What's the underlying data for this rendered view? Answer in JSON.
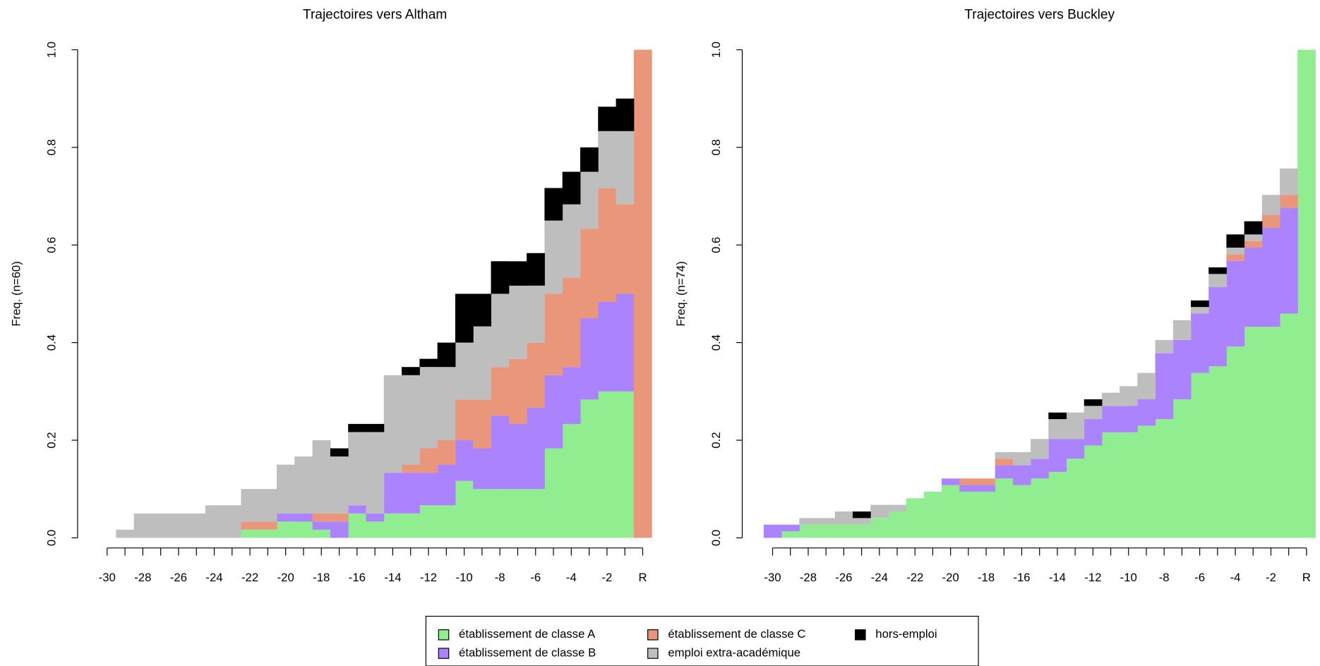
{
  "chart_data": [
    {
      "type": "bar",
      "stacked": true,
      "title": "Trajectoires vers Altham",
      "ylabel": "Freq. (n=60)",
      "categories": [
        "-30",
        null,
        "-28",
        null,
        "-26",
        null,
        "-24",
        null,
        "-22",
        null,
        "-20",
        null,
        "-18",
        null,
        "-16",
        null,
        "-14",
        null,
        "-12",
        null,
        "-10",
        null,
        "-8",
        null,
        "-6",
        null,
        "-4",
        null,
        "-2",
        null,
        "R"
      ],
      "series": [
        {
          "values": [
            0,
            0,
            0,
            0,
            0,
            0,
            0,
            0,
            0.0167,
            0.0167,
            0.0333,
            0.0333,
            0.0167,
            0,
            0.05,
            0.0333,
            0.05,
            0.05,
            0.0667,
            0.0667,
            0.1167,
            0.1,
            0.1,
            0.1,
            0.1,
            0.1833,
            0.2333,
            0.2833,
            0.3,
            0.3,
            0
          ]
        },
        {
          "values": [
            0,
            0,
            0,
            0,
            0,
            0,
            0,
            0,
            0,
            0,
            0.0167,
            0.0167,
            0.0167,
            0.0333,
            0.0167,
            0.0167,
            0.0833,
            0.0833,
            0.0667,
            0.0833,
            0.0833,
            0.0833,
            0.15,
            0.1333,
            0.1667,
            0.15,
            0.1167,
            0.1667,
            0.1833,
            0.2,
            0
          ]
        },
        {
          "values": [
            0,
            0,
            0,
            0,
            0,
            0,
            0,
            0,
            0.0167,
            0.0167,
            0,
            0,
            0.0167,
            0.0167,
            0,
            0,
            0,
            0.0167,
            0.05,
            0.05,
            0.0833,
            0.1,
            0.1,
            0.1333,
            0.1333,
            0.1667,
            0.1833,
            0.1833,
            0.2333,
            0.1833,
            1
          ]
        },
        {
          "values": [
            0,
            0.0167,
            0.05,
            0.05,
            0.05,
            0.05,
            0.0667,
            0.0667,
            0.0667,
            0.0667,
            0.1,
            0.1167,
            0.15,
            0.1167,
            0.15,
            0.1667,
            0.2,
            0.1833,
            0.1667,
            0.15,
            0.1167,
            0.15,
            0.15,
            0.15,
            0.1167,
            0.15,
            0.15,
            0.1167,
            0.1167,
            0.15,
            0
          ]
        },
        {
          "values": [
            0,
            0,
            0,
            0,
            0,
            0,
            0,
            0,
            0,
            0,
            0,
            0,
            0,
            0.0167,
            0.0167,
            0.0167,
            0,
            0.0167,
            0.0167,
            0.05,
            0.1,
            0.0667,
            0.0667,
            0.05,
            0.0667,
            0.0667,
            0.0667,
            0.05,
            0.05,
            0.0667,
            0
          ]
        }
      ],
      "ylim": [
        0,
        1
      ],
      "yticks": [
        {
          "value": 0,
          "label": "0.0"
        },
        {
          "value": 0.2,
          "label": "0.2"
        },
        {
          "value": 0.4,
          "label": "0.4"
        },
        {
          "value": 0.6,
          "label": "0.6"
        },
        {
          "value": 0.8,
          "label": "0.8"
        },
        {
          "value": 1,
          "label": "1.0"
        }
      ]
    },
    {
      "type": "bar",
      "stacked": true,
      "title": "Trajectoires vers Buckley",
      "ylabel": "Freq. (n=74)",
      "categories": [
        "-30",
        null,
        "-28",
        null,
        "-26",
        null,
        "-24",
        null,
        "-22",
        null,
        "-20",
        null,
        "-18",
        null,
        "-16",
        null,
        "-14",
        null,
        "-12",
        null,
        "-10",
        null,
        "-8",
        null,
        "-6",
        null,
        "-4",
        null,
        "-2",
        null,
        "R"
      ],
      "series": [
        {
          "values": [
            0,
            0.0135,
            0.027,
            0.027,
            0.027,
            0.027,
            0.0405,
            0.0541,
            0.0811,
            0.0946,
            0.1081,
            0.0946,
            0.0946,
            0.1216,
            0.1081,
            0.1216,
            0.1351,
            0.1622,
            0.1892,
            0.2162,
            0.2162,
            0.2297,
            0.2432,
            0.2838,
            0.3378,
            0.3514,
            0.3919,
            0.4324,
            0.4324,
            0.4595,
            1
          ]
        },
        {
          "values": [
            0.027,
            0.0135,
            0,
            0,
            0,
            0,
            0,
            0,
            0,
            0,
            0.0135,
            0.0135,
            0.0135,
            0.027,
            0.0405,
            0.0405,
            0.0676,
            0.0405,
            0.0541,
            0.0541,
            0.0541,
            0.0541,
            0.1351,
            0.1216,
            0.1216,
            0.1622,
            0.1757,
            0.1622,
            0.2027,
            0.2162,
            0
          ]
        },
        {
          "values": [
            0,
            0,
            0,
            0,
            0,
            0,
            0,
            0,
            0,
            0,
            0,
            0.0135,
            0.0135,
            0.0135,
            0,
            0,
            0,
            0,
            0,
            0,
            0,
            0,
            0,
            0,
            0,
            0,
            0.0135,
            0.0135,
            0.027,
            0.027,
            0
          ]
        },
        {
          "values": [
            0,
            0,
            0.0135,
            0.0135,
            0.027,
            0.0135,
            0.027,
            0.0135,
            0,
            0,
            0,
            0,
            0,
            0.0135,
            0.027,
            0.0405,
            0.0405,
            0.0541,
            0.027,
            0.027,
            0.0405,
            0.0541,
            0.027,
            0.0405,
            0.0135,
            0.027,
            0.0135,
            0.0135,
            0.0405,
            0.0541,
            0
          ]
        },
        {
          "values": [
            0,
            0,
            0,
            0,
            0,
            0.0135,
            0,
            0,
            0,
            0,
            0,
            0,
            0,
            0,
            0,
            0,
            0.0135,
            0,
            0.0135,
            0,
            0,
            0,
            0,
            0,
            0.0135,
            0.0135,
            0.027,
            0.027,
            0,
            0,
            0
          ]
        }
      ],
      "ylim": [
        0,
        1
      ],
      "yticks": [
        {
          "value": 0,
          "label": "0.0"
        },
        {
          "value": 0.2,
          "label": "0.2"
        },
        {
          "value": 0.4,
          "label": "0.4"
        },
        {
          "value": 0.6,
          "label": "0.6"
        },
        {
          "value": 0.8,
          "label": "0.8"
        },
        {
          "value": 1,
          "label": "1.0"
        }
      ]
    }
  ],
  "legend": [
    {
      "name": "établissement de classe A",
      "color": "#90ee90"
    },
    {
      "name": "établissement de classe B",
      "color": "#ab82ff"
    },
    {
      "name": "établissement de classe C",
      "color": "#e9967a"
    },
    {
      "name": "emploi extra-académique",
      "color": "#bebebe"
    },
    {
      "name": "hors-emploi",
      "color": "#000000"
    }
  ]
}
